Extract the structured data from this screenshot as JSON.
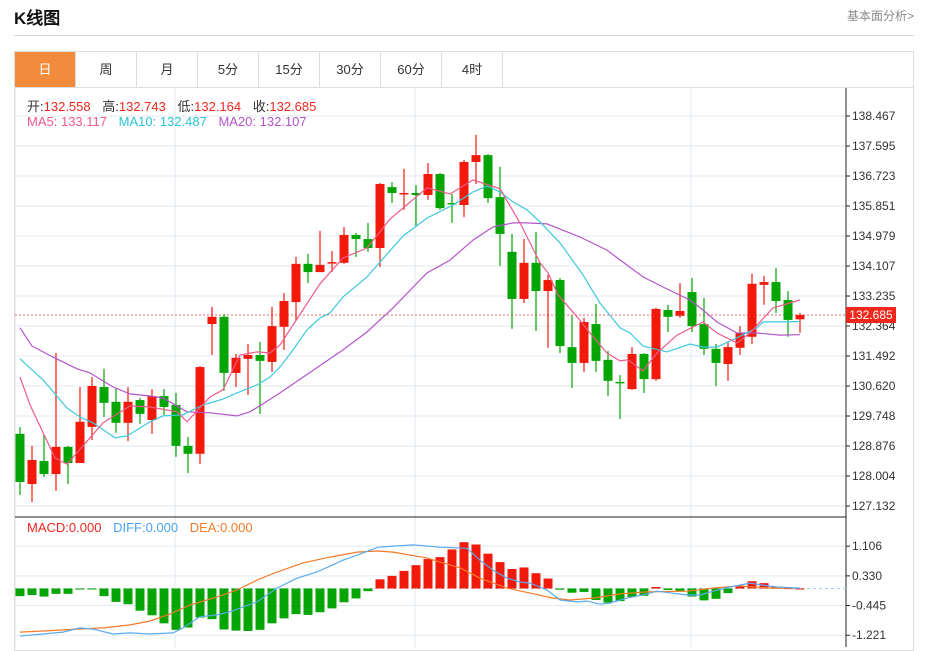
{
  "header": {
    "title": "K线图",
    "link": "基本面分析>"
  },
  "tabs": [
    {
      "label": "日",
      "active": true
    },
    {
      "label": "周"
    },
    {
      "label": "月"
    },
    {
      "label": "5分"
    },
    {
      "label": "15分"
    },
    {
      "label": "30分"
    },
    {
      "label": "60分"
    },
    {
      "label": "4时"
    }
  ],
  "info": {
    "open_label": "开:",
    "open": "132.558",
    "high_label": "高:",
    "high": "132.743",
    "low_label": "低:",
    "low": "132.164",
    "close_label": "收:",
    "close": "132.685",
    "ma5_label": "MA5: ",
    "ma5": "133.117",
    "ma10_label": "MA10: ",
    "ma10": "132.487",
    "ma20_label": "MA20: ",
    "ma20": "132.107"
  },
  "macd_info": {
    "macd_label": "MACD:",
    "macd": "0.000",
    "diff_label": "DIFF:",
    "diff": "0.000",
    "dea_label": "DEA:",
    "dea": "0.000"
  },
  "colors": {
    "up": "#f0190a",
    "down": "#04a504",
    "accent": "#f28b3c",
    "ma5": "#ee5a8c",
    "ma10": "#3ec9dd",
    "ma20": "#b455c9",
    "diff": "#5aaaf0",
    "dea": "#f57a28",
    "grid": "#e2eaf1"
  },
  "chart_data": {
    "type": "candlestick",
    "last_price": "132.685",
    "price_ticks": [
      "138.467",
      "137.595",
      "136.723",
      "135.851",
      "134.979",
      "134.107",
      "133.235",
      "132.364",
      "131.492",
      "130.620",
      "129.748",
      "128.876",
      "128.004",
      "127.132"
    ],
    "candles_ohlc": [
      [
        129.23,
        129.43,
        127.45,
        127.83
      ],
      [
        127.77,
        128.88,
        127.25,
        128.47
      ],
      [
        128.44,
        129.2,
        127.98,
        128.06
      ],
      [
        128.06,
        131.58,
        127.57,
        128.85
      ],
      [
        128.85,
        128.88,
        127.77,
        128.38
      ],
      [
        128.38,
        130.59,
        128.38,
        129.58
      ],
      [
        129.43,
        130.88,
        129.05,
        130.62
      ],
      [
        130.59,
        131.12,
        129.72,
        130.13
      ],
      [
        130.16,
        130.56,
        129.26,
        129.55
      ],
      [
        129.55,
        130.59,
        129.02,
        130.16
      ],
      [
        130.21,
        130.27,
        129.52,
        129.81
      ],
      [
        129.63,
        130.53,
        129.23,
        130.33
      ],
      [
        130.33,
        130.53,
        129.78,
        130.01
      ],
      [
        130.07,
        130.42,
        128.56,
        128.88
      ],
      [
        128.88,
        129.14,
        128.09,
        128.65
      ],
      [
        128.65,
        131.2,
        128.35,
        131.17
      ],
      [
        132.42,
        132.92,
        131.52,
        132.63
      ],
      [
        132.63,
        132.71,
        130.48,
        131.0
      ],
      [
        131.0,
        131.55,
        130.59,
        131.44
      ],
      [
        131.41,
        131.84,
        130.36,
        131.52
      ],
      [
        131.52,
        131.9,
        129.81,
        131.35
      ],
      [
        131.32,
        132.92,
        131.03,
        132.36
      ],
      [
        132.34,
        133.32,
        131.67,
        133.09
      ],
      [
        133.06,
        134.37,
        132.54,
        134.17
      ],
      [
        134.17,
        134.46,
        133.61,
        133.93
      ],
      [
        133.93,
        135.13,
        133.93,
        134.14
      ],
      [
        134.2,
        134.54,
        133.93,
        134.22
      ],
      [
        134.2,
        135.24,
        134.17,
        135.01
      ],
      [
        135.01,
        135.07,
        134.37,
        134.89
      ],
      [
        134.89,
        135.36,
        134.52,
        134.63
      ],
      [
        134.63,
        136.52,
        134.08,
        136.49
      ],
      [
        136.4,
        136.55,
        135.94,
        136.23
      ],
      [
        136.2,
        136.93,
        135.74,
        136.23
      ],
      [
        136.23,
        136.46,
        135.24,
        136.17
      ],
      [
        136.17,
        137.1,
        136.03,
        136.78
      ],
      [
        136.78,
        136.81,
        135.74,
        135.79
      ],
      [
        135.94,
        136.2,
        135.36,
        135.91
      ],
      [
        135.88,
        137.19,
        135.53,
        137.13
      ],
      [
        137.13,
        137.92,
        136.49,
        137.33
      ],
      [
        137.33,
        137.36,
        135.94,
        136.08
      ],
      [
        136.11,
        136.99,
        134.11,
        135.04
      ],
      [
        134.52,
        135.04,
        132.28,
        133.15
      ],
      [
        133.15,
        134.89,
        133.03,
        134.2
      ],
      [
        134.2,
        135.1,
        132.22,
        133.38
      ],
      [
        133.38,
        133.85,
        131.73,
        133.7
      ],
      [
        133.7,
        133.76,
        131.58,
        131.78
      ],
      [
        131.75,
        132.66,
        130.56,
        131.29
      ],
      [
        131.29,
        132.6,
        131.03,
        132.48
      ],
      [
        132.42,
        133.0,
        131.03,
        131.35
      ],
      [
        131.38,
        131.64,
        130.33,
        130.77
      ],
      [
        130.74,
        130.94,
        129.66,
        130.71
      ],
      [
        130.53,
        131.75,
        130.51,
        131.55
      ],
      [
        131.55,
        131.58,
        130.42,
        130.82
      ],
      [
        130.82,
        132.89,
        130.77,
        132.86
      ],
      [
        132.83,
        132.98,
        132.19,
        132.63
      ],
      [
        132.66,
        133.61,
        132.6,
        132.8
      ],
      [
        133.35,
        133.76,
        132.19,
        132.36
      ],
      [
        132.42,
        133.18,
        131.52,
        131.7
      ],
      [
        131.7,
        131.84,
        130.62,
        131.29
      ],
      [
        131.26,
        131.9,
        130.77,
        131.75
      ],
      [
        131.73,
        132.36,
        131.52,
        132.16
      ],
      [
        132.05,
        133.88,
        131.84,
        133.59
      ],
      [
        133.56,
        133.82,
        132.98,
        133.64
      ],
      [
        133.64,
        134.05,
        132.74,
        133.09
      ],
      [
        133.12,
        133.38,
        132.05,
        132.54
      ],
      [
        132.558,
        132.743,
        132.164,
        132.685
      ]
    ],
    "ma5": [
      [
        1,
        130.88
      ],
      [
        1.83,
        130.07
      ],
      [
        3.92,
        128.53
      ],
      [
        4.92,
        128.35
      ],
      [
        7.92,
        129.55
      ],
      [
        10.17,
        130.04
      ],
      [
        11.83,
        130.01
      ],
      [
        14.08,
        129.87
      ],
      [
        14.92,
        129.58
      ],
      [
        16.83,
        130.3
      ],
      [
        17.92,
        130.51
      ],
      [
        19.33,
        131.52
      ],
      [
        20.75,
        131.61
      ],
      [
        21.83,
        131.58
      ],
      [
        22.67,
        131.81
      ],
      [
        26,
        133.59
      ],
      [
        27.92,
        134.34
      ],
      [
        29.92,
        134.63
      ],
      [
        31.83,
        135.47
      ],
      [
        34.92,
        136.38
      ],
      [
        36.83,
        136.2
      ],
      [
        38.75,
        136.61
      ],
      [
        41,
        136.35
      ],
      [
        42.67,
        135.36
      ],
      [
        44.33,
        134.2
      ],
      [
        45,
        133.91
      ],
      [
        45.83,
        133.27
      ],
      [
        47.42,
        132.63
      ],
      [
        48.75,
        132.05
      ],
      [
        49.92,
        131.58
      ],
      [
        51,
        131.35
      ],
      [
        51.67,
        131.38
      ],
      [
        52.92,
        131.06
      ],
      [
        54.08,
        131.58
      ],
      [
        55.75,
        132.1
      ],
      [
        57.92,
        132.48
      ],
      [
        59.08,
        132.16
      ],
      [
        60.75,
        131.87
      ],
      [
        61.83,
        132.16
      ],
      [
        63.75,
        132.89
      ],
      [
        66,
        133.12
      ]
    ],
    "ma10": [
      [
        1,
        131.41
      ],
      [
        1.83,
        131.14
      ],
      [
        2.92,
        130.8
      ],
      [
        4.92,
        129.98
      ],
      [
        6,
        129.72
      ],
      [
        7.08,
        129.55
      ],
      [
        8.92,
        129.11
      ],
      [
        9.92,
        129.17
      ],
      [
        11.83,
        129.58
      ],
      [
        12.92,
        129.75
      ],
      [
        14.58,
        129.78
      ],
      [
        16.25,
        130.07
      ],
      [
        17.92,
        130.24
      ],
      [
        19.08,
        130.42
      ],
      [
        20.75,
        130.65
      ],
      [
        21.83,
        130.88
      ],
      [
        22.67,
        131.17
      ],
      [
        23.75,
        131.67
      ],
      [
        24.92,
        132.25
      ],
      [
        26,
        132.6
      ],
      [
        26.83,
        132.74
      ],
      [
        27.92,
        133.21
      ],
      [
        29.92,
        133.79
      ],
      [
        31,
        134.22
      ],
      [
        32.92,
        134.98
      ],
      [
        34.92,
        135.5
      ],
      [
        37.08,
        135.88
      ],
      [
        38.75,
        136.26
      ],
      [
        39.92,
        136.43
      ],
      [
        41,
        136.26
      ],
      [
        42.08,
        135.97
      ],
      [
        43.25,
        135.74
      ],
      [
        44.33,
        135.39
      ],
      [
        46,
        134.78
      ],
      [
        47.92,
        133.85
      ],
      [
        49.33,
        133.03
      ],
      [
        51,
        132.31
      ],
      [
        51.83,
        132.16
      ],
      [
        52.92,
        131.78
      ],
      [
        54.92,
        131.61
      ],
      [
        56.83,
        131.84
      ],
      [
        57.92,
        131.75
      ],
      [
        59.08,
        131.75
      ],
      [
        60.75,
        132.02
      ],
      [
        62.42,
        132.31
      ],
      [
        62.92,
        132.48
      ],
      [
        66,
        132.49
      ]
    ],
    "ma20": [
      [
        1,
        132.31
      ],
      [
        2,
        131.78
      ],
      [
        3.75,
        131.46
      ],
      [
        5.75,
        131.12
      ],
      [
        6.83,
        131.0
      ],
      [
        8.75,
        130.59
      ],
      [
        10.17,
        130.39
      ],
      [
        11.83,
        130.33
      ],
      [
        12.92,
        130.27
      ],
      [
        14.92,
        129.87
      ],
      [
        16.83,
        129.84
      ],
      [
        19.08,
        129.75
      ],
      [
        20.17,
        129.87
      ],
      [
        21.25,
        130.1
      ],
      [
        22.67,
        130.42
      ],
      [
        27.92,
        131.67
      ],
      [
        29.92,
        132.19
      ],
      [
        32.08,
        132.89
      ],
      [
        34.92,
        133.91
      ],
      [
        36.83,
        134.28
      ],
      [
        38.75,
        134.86
      ],
      [
        40.42,
        135.24
      ],
      [
        42.08,
        135.36
      ],
      [
        43.25,
        135.36
      ],
      [
        44.92,
        135.33
      ],
      [
        47.67,
        134.95
      ],
      [
        49.92,
        134.57
      ],
      [
        51.25,
        134.22
      ],
      [
        52.92,
        133.79
      ],
      [
        54.92,
        133.44
      ],
      [
        56.83,
        133.12
      ],
      [
        57.92,
        132.83
      ],
      [
        59.08,
        132.48
      ],
      [
        60.75,
        132.16
      ],
      [
        62.42,
        132.16
      ],
      [
        64.33,
        132.1
      ],
      [
        66,
        132.11
      ]
    ],
    "macd": {
      "ticks": [
        "1.106",
        "0.330",
        "-0.445",
        "-1.221"
      ],
      "histogram": [
        -0.2,
        -0.17,
        -0.21,
        -0.14,
        -0.14,
        -0.02,
        -0.02,
        -0.2,
        -0.35,
        -0.41,
        -0.58,
        -0.7,
        -0.91,
        -1.08,
        -1.02,
        -0.76,
        -0.8,
        -1.07,
        -1.1,
        -1.11,
        -1.08,
        -0.91,
        -0.78,
        -0.67,
        -0.69,
        -0.62,
        -0.52,
        -0.36,
        -0.26,
        -0.07,
        0.24,
        0.33,
        0.46,
        0.61,
        0.77,
        0.82,
        1.02,
        1.21,
        1.15,
        0.91,
        0.69,
        0.51,
        0.55,
        0.4,
        0.26,
        -0.03,
        -0.11,
        -0.09,
        -0.3,
        -0.37,
        -0.33,
        -0.22,
        -0.19,
        0.04,
        -0.04,
        -0.07,
        -0.21,
        -0.31,
        -0.27,
        -0.12,
        0.05,
        0.19,
        0.14,
        0.05,
        0.01,
        0.0
      ],
      "diff": [
        [
          1,
          -1.24
        ],
        [
          2.92,
          -1.19
        ],
        [
          4.58,
          -1.14
        ],
        [
          6,
          -1.03
        ],
        [
          7.08,
          -1.06
        ],
        [
          8.75,
          -1.19
        ],
        [
          10.17,
          -1.16
        ],
        [
          11.83,
          -1.19
        ],
        [
          13.75,
          -1.16
        ],
        [
          14.58,
          -1.03
        ],
        [
          16,
          -0.74
        ],
        [
          17.42,
          -0.69
        ],
        [
          18.5,
          -0.61
        ],
        [
          20.75,
          -0.35
        ],
        [
          22.42,
          0.01
        ],
        [
          24.08,
          0.27
        ],
        [
          25.75,
          0.43
        ],
        [
          27.92,
          0.74
        ],
        [
          29.58,
          0.93
        ],
        [
          30.83,
          1.08
        ],
        [
          33.75,
          1.14
        ],
        [
          34.92,
          1.11
        ],
        [
          36,
          1.08
        ],
        [
          38.25,
          1.05
        ],
        [
          39.33,
          0.74
        ],
        [
          40.42,
          0.48
        ],
        [
          41.58,
          0.27
        ],
        [
          42.67,
          0.17
        ],
        [
          43.5,
          0.14
        ],
        [
          44.92,
          -0.04
        ],
        [
          46,
          -0.3
        ],
        [
          47.42,
          -0.35
        ],
        [
          48.25,
          -0.33
        ],
        [
          49.33,
          -0.41
        ],
        [
          50.17,
          -0.38
        ],
        [
          51.58,
          -0.25
        ],
        [
          53.25,
          -0.14
        ],
        [
          54.08,
          -0.07
        ],
        [
          56.58,
          -0.17
        ],
        [
          57.67,
          -0.17
        ],
        [
          58.75,
          -0.07
        ],
        [
          60.17,
          0.04
        ],
        [
          61.83,
          0.14
        ],
        [
          62.92,
          0.09
        ],
        [
          64.08,
          0.04
        ],
        [
          66,
          0.01
        ]
      ],
      "dea": [
        [
          1,
          -1.14
        ],
        [
          2.92,
          -1.11
        ],
        [
          5.75,
          -1.06
        ],
        [
          7.92,
          -1.03
        ],
        [
          10.17,
          -0.95
        ],
        [
          11.83,
          -0.85
        ],
        [
          13.5,
          -0.67
        ],
        [
          15.17,
          -0.43
        ],
        [
          17.42,
          -0.22
        ],
        [
          19.08,
          -0.04
        ],
        [
          20.75,
          0.22
        ],
        [
          22.42,
          0.43
        ],
        [
          24.58,
          0.67
        ],
        [
          26.83,
          0.82
        ],
        [
          29.08,
          0.95
        ],
        [
          30.75,
          0.98
        ],
        [
          32.08,
          0.95
        ],
        [
          34.92,
          0.8
        ],
        [
          36,
          0.69
        ],
        [
          37.67,
          0.54
        ],
        [
          39.33,
          0.27
        ],
        [
          41.58,
          0.01
        ],
        [
          43.5,
          -0.12
        ],
        [
          45.42,
          -0.25
        ],
        [
          46.83,
          -0.3
        ],
        [
          48.75,
          -0.25
        ],
        [
          51,
          -0.14
        ],
        [
          53.25,
          -0.09
        ],
        [
          56.58,
          -0.07
        ],
        [
          58.75,
          0.01
        ],
        [
          61,
          0.07
        ],
        [
          62.08,
          0.04
        ],
        [
          63.75,
          0.01
        ],
        [
          66,
          0.01
        ]
      ]
    }
  }
}
